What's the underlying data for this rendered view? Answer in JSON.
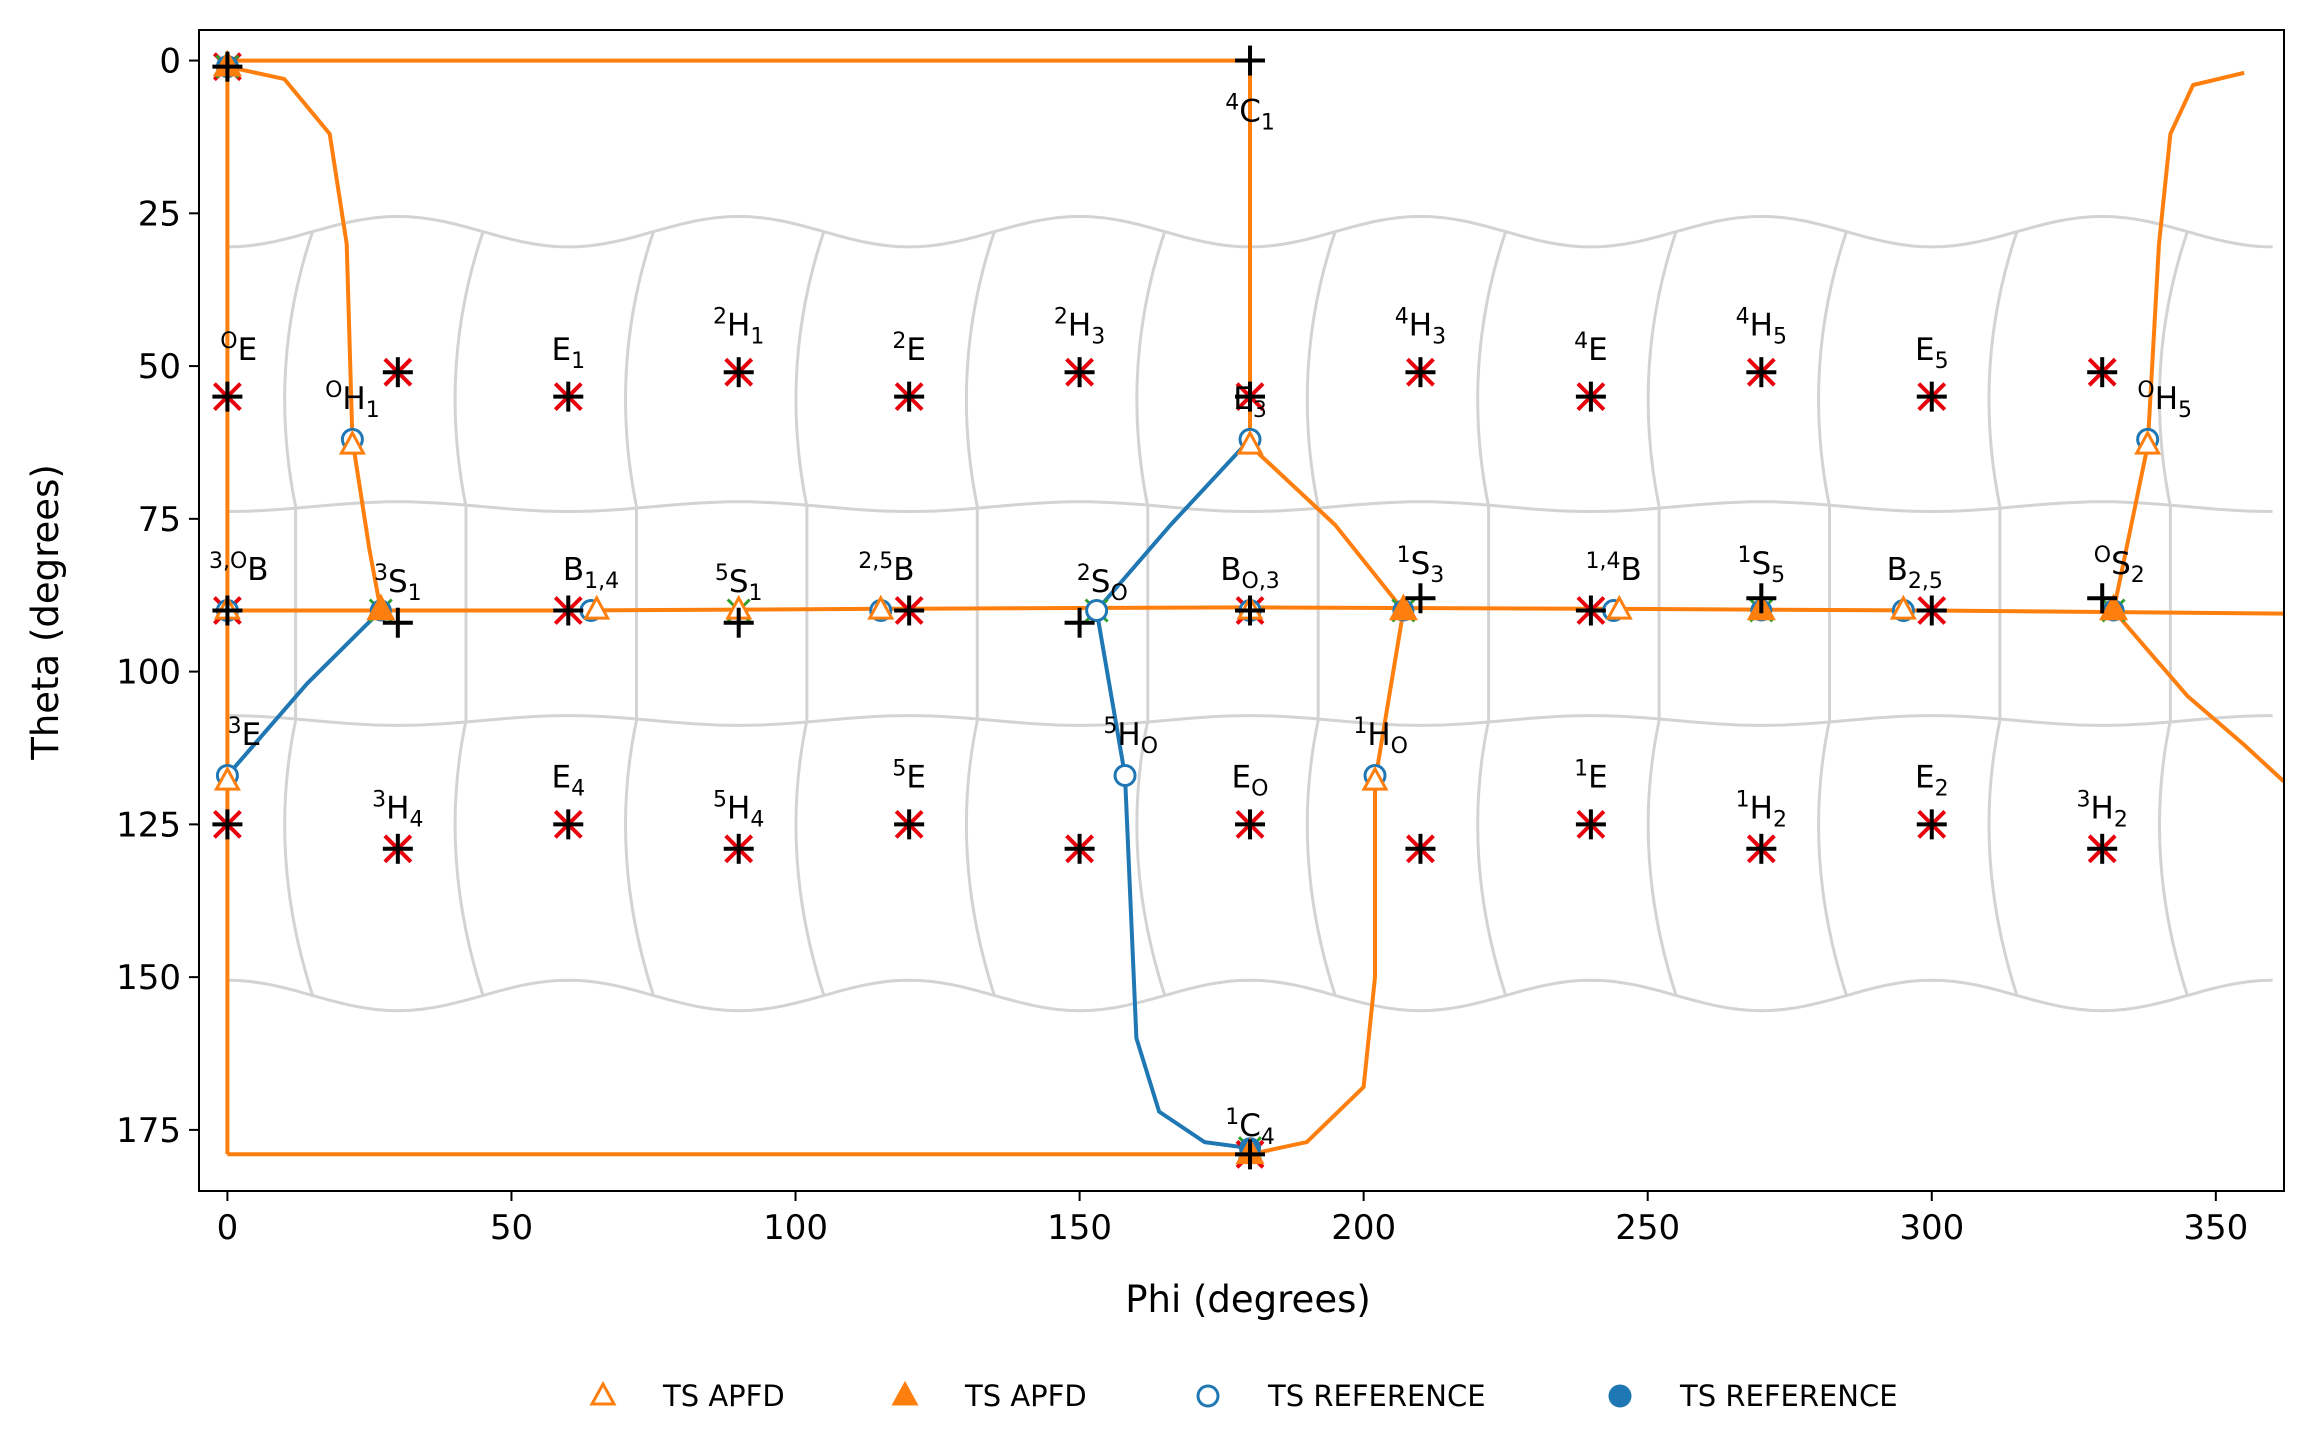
{
  "chart_data": {
    "type": "scatter",
    "xlabel": "Phi (degrees)",
    "ylabel": "Theta (degrees)",
    "xlim": [
      -5,
      362
    ],
    "ylim": [
      185,
      -5
    ],
    "y_inverted": true,
    "xticks": [
      0,
      50,
      100,
      150,
      200,
      250,
      300,
      350
    ],
    "yticks": [
      0,
      25,
      50,
      75,
      100,
      125,
      150,
      175
    ],
    "grid": false,
    "legend_position": "bottom-center",
    "colors": {
      "apfd": "#ff7f0e",
      "reference": "#1f77b4",
      "cross_red": "#e8000b",
      "plus_black": "#000000",
      "cross_green": "#2ca02c",
      "boundary_gray": "#d3d3d3"
    },
    "legend": [
      {
        "label": "TS APFD",
        "marker": "triangle-open",
        "color": "#ff7f0e"
      },
      {
        "label": "TS APFD",
        "marker": "triangle-filled",
        "color": "#ff7f0e"
      },
      {
        "label": "TS REFERENCE",
        "marker": "circle-open",
        "color": "#1f77b4"
      },
      {
        "label": "TS REFERENCE",
        "marker": "circle-filled",
        "color": "#1f77b4"
      }
    ],
    "pucker_labels": [
      {
        "base": "",
        "sup": "4",
        "main": "C",
        "sub": "1",
        "phi": 180,
        "theta": 10
      },
      {
        "base": "",
        "sup": "O",
        "main": "E",
        "sub": "",
        "phi": 2,
        "theta": 49
      },
      {
        "base": "",
        "sup": "",
        "main": "E",
        "sub": "1",
        "phi": 60,
        "theta": 49
      },
      {
        "base": "",
        "sup": "2",
        "main": "H",
        "sub": "1",
        "phi": 90,
        "theta": 45
      },
      {
        "base": "",
        "sup": "2",
        "main": "E",
        "sub": "",
        "phi": 120,
        "theta": 49
      },
      {
        "base": "",
        "sup": "2",
        "main": "H",
        "sub": "3",
        "phi": 150,
        "theta": 45
      },
      {
        "base": "",
        "sup": "",
        "main": "E",
        "sub": "3",
        "phi": 180,
        "theta": 57
      },
      {
        "base": "",
        "sup": "4",
        "main": "H",
        "sub": "3",
        "phi": 210,
        "theta": 45
      },
      {
        "base": "",
        "sup": "4",
        "main": "E",
        "sub": "",
        "phi": 240,
        "theta": 49
      },
      {
        "base": "",
        "sup": "4",
        "main": "H",
        "sub": "5",
        "phi": 270,
        "theta": 45
      },
      {
        "base": "",
        "sup": "",
        "main": "E",
        "sub": "5",
        "phi": 300,
        "theta": 49
      },
      {
        "base": "",
        "sup": "O",
        "main": "H",
        "sub": "1",
        "phi": 22,
        "theta": 57
      },
      {
        "base": "",
        "sup": "O",
        "main": "H",
        "sub": "5",
        "phi": 341,
        "theta": 57
      },
      {
        "base": "",
        "sup": "3,O",
        "main": "B",
        "sub": "",
        "phi": 2,
        "theta": 85
      },
      {
        "base": "",
        "sup": "3",
        "main": "S",
        "sub": "1",
        "phi": 30,
        "theta": 87
      },
      {
        "base": "",
        "sup": "",
        "main": "B",
        "sub": "1,4",
        "phi": 64,
        "theta": 85
      },
      {
        "base": "",
        "sup": "5",
        "main": "S",
        "sub": "1",
        "phi": 90,
        "theta": 87
      },
      {
        "base": "",
        "sup": "2,5",
        "main": "B",
        "sub": "",
        "phi": 116,
        "theta": 85
      },
      {
        "base": "",
        "sup": "2",
        "main": "S",
        "sub": "O",
        "phi": 154,
        "theta": 87
      },
      {
        "base": "",
        "sup": "",
        "main": "B",
        "sub": "O,3",
        "phi": 180,
        "theta": 85
      },
      {
        "base": "",
        "sup": "1",
        "main": "S",
        "sub": "3",
        "phi": 210,
        "theta": 84
      },
      {
        "base": "",
        "sup": "1,4",
        "main": "B",
        "sub": "",
        "phi": 244,
        "theta": 85
      },
      {
        "base": "",
        "sup": "1",
        "main": "S",
        "sub": "5",
        "phi": 270,
        "theta": 84
      },
      {
        "base": "",
        "sup": "",
        "main": "B",
        "sub": "2,5",
        "phi": 297,
        "theta": 85
      },
      {
        "base": "",
        "sup": "O",
        "main": "S",
        "sub": "2",
        "phi": 333,
        "theta": 84
      },
      {
        "base": "",
        "sup": "3",
        "main": "E",
        "sub": "",
        "phi": 3,
        "theta": 112
      },
      {
        "base": "",
        "sup": "5",
        "main": "H",
        "sub": "O",
        "phi": 159,
        "theta": 112
      },
      {
        "base": "",
        "sup": "1",
        "main": "H",
        "sub": "O",
        "phi": 203,
        "theta": 112
      },
      {
        "base": "",
        "sup": "",
        "main": "E",
        "sub": "4",
        "phi": 60,
        "theta": 119
      },
      {
        "base": "",
        "sup": "5",
        "main": "E",
        "sub": "",
        "phi": 120,
        "theta": 119
      },
      {
        "base": "",
        "sup": "",
        "main": "E",
        "sub": "O",
        "phi": 180,
        "theta": 119
      },
      {
        "base": "",
        "sup": "1",
        "main": "E",
        "sub": "",
        "phi": 240,
        "theta": 119
      },
      {
        "base": "",
        "sup": "",
        "main": "E",
        "sub": "2",
        "phi": 300,
        "theta": 119
      },
      {
        "base": "",
        "sup": "3",
        "main": "H",
        "sub": "4",
        "phi": 30,
        "theta": 124
      },
      {
        "base": "",
        "sup": "5",
        "main": "H",
        "sub": "4",
        "phi": 90,
        "theta": 124
      },
      {
        "base": "",
        "sup": "1",
        "main": "H",
        "sub": "2",
        "phi": 270,
        "theta": 124
      },
      {
        "base": "",
        "sup": "3",
        "main": "H",
        "sub": "2",
        "phi": 330,
        "theta": 124
      },
      {
        "base": "",
        "sup": "1",
        "main": "C",
        "sub": "4",
        "phi": 180,
        "theta": 176
      }
    ],
    "red_cross_points": [
      [
        0,
        1
      ],
      [
        180,
        55
      ],
      [
        0,
        55
      ],
      [
        30,
        51
      ],
      [
        60,
        55
      ],
      [
        90,
        51
      ],
      [
        120,
        55
      ],
      [
        150,
        51
      ],
      [
        210,
        51
      ],
      [
        240,
        55
      ],
      [
        270,
        51
      ],
      [
        300,
        55
      ],
      [
        330,
        51
      ],
      [
        0,
        90
      ],
      [
        60,
        90
      ],
      [
        120,
        90
      ],
      [
        180,
        90
      ],
      [
        240,
        90
      ],
      [
        300,
        90
      ],
      [
        0,
        125
      ],
      [
        30,
        129
      ],
      [
        60,
        125
      ],
      [
        90,
        129
      ],
      [
        120,
        125
      ],
      [
        150,
        129
      ],
      [
        180,
        125
      ],
      [
        210,
        129
      ],
      [
        240,
        125
      ],
      [
        270,
        129
      ],
      [
        300,
        125
      ],
      [
        330,
        129
      ],
      [
        180,
        179
      ]
    ],
    "black_plus_points": [
      [
        180,
        0
      ],
      [
        0,
        1
      ],
      [
        180,
        55
      ],
      [
        0,
        55
      ],
      [
        30,
        51
      ],
      [
        60,
        55
      ],
      [
        90,
        51
      ],
      [
        120,
        55
      ],
      [
        150,
        51
      ],
      [
        210,
        51
      ],
      [
        240,
        55
      ],
      [
        270,
        51
      ],
      [
        300,
        55
      ],
      [
        330,
        51
      ],
      [
        0,
        90
      ],
      [
        30,
        92
      ],
      [
        60,
        90
      ],
      [
        90,
        92
      ],
      [
        120,
        90
      ],
      [
        150,
        92
      ],
      [
        180,
        90
      ],
      [
        210,
        88
      ],
      [
        240,
        90
      ],
      [
        270,
        88
      ],
      [
        300,
        90
      ],
      [
        330,
        88
      ],
      [
        0,
        125
      ],
      [
        30,
        129
      ],
      [
        60,
        125
      ],
      [
        90,
        129
      ],
      [
        120,
        125
      ],
      [
        150,
        129
      ],
      [
        180,
        125
      ],
      [
        210,
        129
      ],
      [
        240,
        125
      ],
      [
        270,
        129
      ],
      [
        300,
        125
      ],
      [
        330,
        129
      ],
      [
        180,
        179
      ]
    ],
    "green_cross_points": [
      [
        0,
        1
      ],
      [
        27,
        90
      ],
      [
        90,
        90
      ],
      [
        153,
        90
      ],
      [
        207,
        90
      ],
      [
        270,
        90
      ],
      [
        332,
        90
      ],
      [
        180,
        178
      ]
    ],
    "ts_apfd_open": [
      [
        0,
        1
      ],
      [
        22,
        63
      ],
      [
        65,
        90
      ],
      [
        90,
        90
      ],
      [
        115,
        90
      ],
      [
        180,
        63
      ],
      [
        180,
        90
      ],
      [
        245,
        90
      ],
      [
        295,
        90
      ],
      [
        338,
        63
      ],
      [
        0,
        118
      ],
      [
        202,
        118
      ],
      [
        0,
        90
      ]
    ],
    "ts_apfd_filled": [
      [
        0,
        1
      ],
      [
        27,
        90
      ],
      [
        207,
        90
      ],
      [
        270,
        90
      ],
      [
        332,
        90
      ],
      [
        180,
        179
      ]
    ],
    "ts_reference_open": [
      [
        0,
        1
      ],
      [
        22,
        62
      ],
      [
        0,
        90
      ],
      [
        64,
        90
      ],
      [
        115,
        90
      ],
      [
        153,
        90
      ],
      [
        180,
        62
      ],
      [
        180,
        90
      ],
      [
        244,
        90
      ],
      [
        295,
        90
      ],
      [
        338,
        62
      ],
      [
        0,
        117
      ],
      [
        158,
        117
      ],
      [
        202,
        117
      ]
    ],
    "ts_reference_filled": [
      [
        0,
        1
      ],
      [
        27,
        90
      ],
      [
        207,
        90
      ],
      [
        270,
        90
      ],
      [
        332,
        90
      ],
      [
        180,
        178
      ]
    ],
    "series": [
      {
        "color": "#ff7f0e",
        "points": [
          [
            0,
            0
          ],
          [
            180,
            0
          ],
          [
            180,
            55
          ],
          [
            180,
            62
          ]
        ]
      },
      {
        "color": "#ff7f0e",
        "points": [
          [
            0,
            179
          ],
          [
            180,
            179
          ]
        ]
      },
      {
        "color": "#ff7f0e",
        "points": [
          [
            0,
            0
          ],
          [
            0,
            179
          ]
        ]
      },
      {
        "color": "#ff7f0e",
        "points": [
          [
            0,
            1
          ],
          [
            10,
            3
          ],
          [
            18,
            12
          ],
          [
            21,
            30
          ],
          [
            22,
            62
          ],
          [
            25,
            80
          ],
          [
            27,
            90
          ]
        ]
      },
      {
        "color": "#ff7f0e",
        "points": [
          [
            0,
            90
          ],
          [
            60,
            90
          ],
          [
            120,
            89.7
          ],
          [
            180,
            89.5
          ],
          [
            240,
            89.7
          ],
          [
            300,
            90
          ],
          [
            362,
            90.5
          ]
        ]
      },
      {
        "color": "#ff7f0e",
        "points": [
          [
            180,
            63
          ],
          [
            195,
            76
          ],
          [
            207,
            90
          ]
        ]
      },
      {
        "color": "#ff7f0e",
        "points": [
          [
            207,
            90
          ],
          [
            202,
            118
          ],
          [
            202,
            150
          ],
          [
            200,
            168
          ],
          [
            190,
            177
          ],
          [
            180,
            179
          ]
        ]
      },
      {
        "color": "#ff7f0e",
        "points": [
          [
            332,
            90
          ],
          [
            338,
            63
          ],
          [
            340,
            30
          ],
          [
            342,
            12
          ],
          [
            346,
            4
          ],
          [
            355,
            2
          ]
        ]
      },
      {
        "color": "#ff7f0e",
        "points": [
          [
            332,
            90
          ],
          [
            345,
            104
          ],
          [
            355,
            112
          ],
          [
            362,
            118
          ]
        ]
      },
      {
        "color": "#1f77b4",
        "points": [
          [
            0,
            117
          ],
          [
            14,
            102
          ],
          [
            27,
            90
          ]
        ]
      },
      {
        "color": "#1f77b4",
        "points": [
          [
            153,
            90
          ],
          [
            166,
            76
          ],
          [
            180,
            62
          ]
        ]
      },
      {
        "color": "#1f77b4",
        "points": [
          [
            153,
            90
          ],
          [
            158,
            117
          ],
          [
            160,
            160
          ],
          [
            164,
            172
          ],
          [
            172,
            177
          ],
          [
            180,
            178
          ]
        ]
      }
    ]
  }
}
